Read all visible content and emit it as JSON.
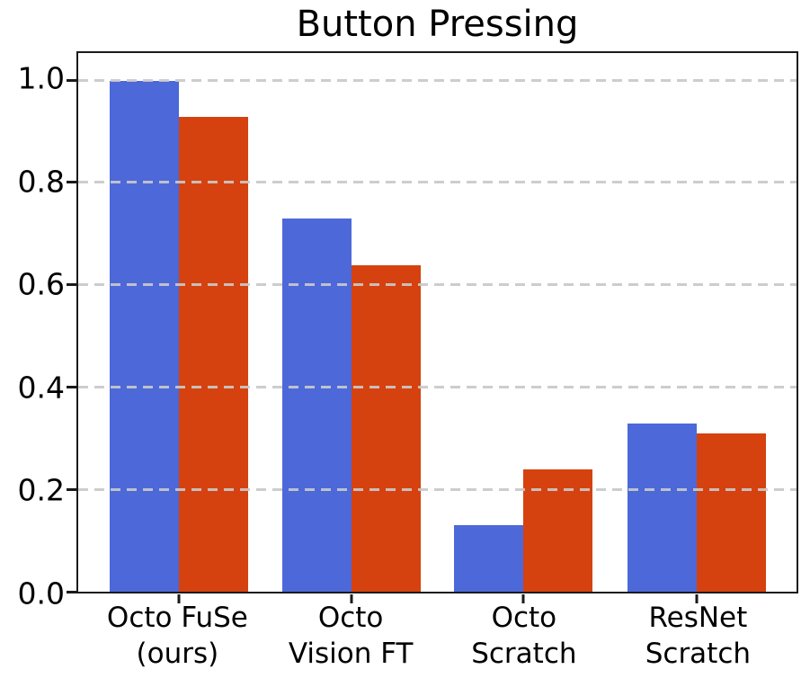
{
  "chart_data": {
    "type": "bar",
    "title": "Button Pressing",
    "categories": [
      "Octo FuSe\n(ours)",
      "Octo\nVision FT",
      "Octo\nScratch",
      "ResNet\nScratch"
    ],
    "series": [
      {
        "name": "blue-series",
        "color": "#4C68D9",
        "values": [
          1.0,
          0.73,
          0.13,
          0.33
        ]
      },
      {
        "name": "orange-series",
        "color": "#D5420F",
        "values": [
          0.93,
          0.64,
          0.24,
          0.31
        ]
      }
    ],
    "xlabel": "",
    "ylabel": "",
    "ytick_labels": [
      "0.0",
      "0.2",
      "0.4",
      "0.6",
      "0.8",
      "1.0"
    ],
    "ytick_values": [
      0,
      0.2,
      0.4,
      0.6,
      0.8,
      1.0
    ],
    "ylim": [
      0,
      1.053
    ],
    "grid": {
      "axis": "y",
      "style": "dashed",
      "color": "#c9c9c9",
      "above_bars": true
    },
    "legend": "none",
    "spine_color": "#1a1a1a"
  }
}
